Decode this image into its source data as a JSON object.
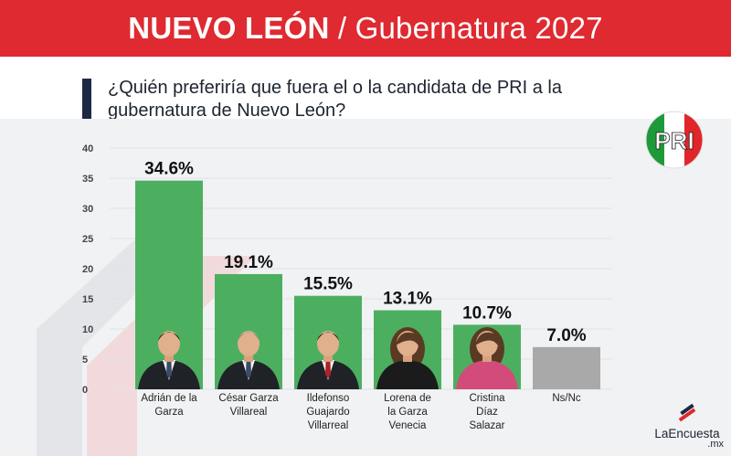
{
  "header": {
    "state": "NUEVO LEÓN",
    "separator": "/",
    "subtitle": "Gubernatura 2027"
  },
  "question": "¿Quién preferiría que fuera el o la candidata de PRI a la gubernatura de Nuevo León?",
  "party_logo": {
    "text": "PRI",
    "icon": "pri-logo-icon",
    "colors": [
      "#1f9a3a",
      "#ffffff",
      "#e0252b"
    ]
  },
  "brand": {
    "name": "LaEncuesta",
    "suffix": ".mx",
    "icon": "laencuesta-logo-icon"
  },
  "colors": {
    "banner": "#de2a30",
    "candidate_bar": "#4caf5f",
    "nsnc_bar": "#a9a9a9",
    "accent_dark": "#1d2a44"
  },
  "chart_data": {
    "type": "bar",
    "categories": [
      [
        "Adrián de la",
        "Garza"
      ],
      [
        "César Garza",
        "Villareal"
      ],
      [
        "Ildefonso",
        "Guajardo",
        "Villarreal"
      ],
      [
        "Lorena de",
        "la Garza",
        "Venecia"
      ],
      [
        "Cristina",
        "Díaz",
        "Salazar"
      ],
      [
        "Ns/Nc"
      ]
    ],
    "values": [
      34.6,
      19.1,
      15.5,
      13.1,
      10.7,
      7.0
    ],
    "value_labels": [
      "34.6%",
      "19.1%",
      "15.5%",
      "13.1%",
      "10.7%",
      "7.0%"
    ],
    "bar_colors": [
      "#4caf5f",
      "#4caf5f",
      "#4caf5f",
      "#4caf5f",
      "#4caf5f",
      "#a9a9a9"
    ],
    "yticks": [
      0,
      5,
      10,
      15,
      20,
      25,
      30,
      35,
      40
    ],
    "ylim": [
      0,
      40
    ],
    "grid": true,
    "photos": [
      true,
      true,
      true,
      true,
      true,
      false
    ]
  }
}
